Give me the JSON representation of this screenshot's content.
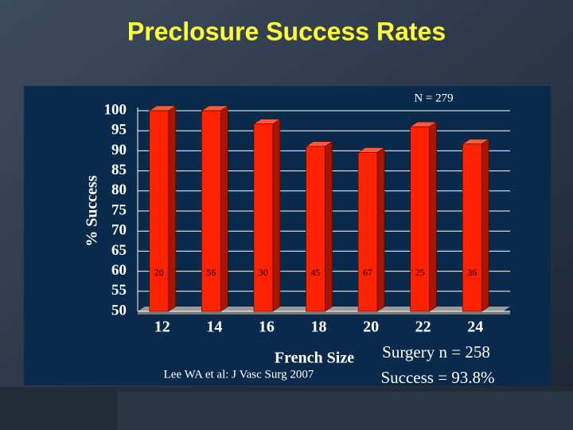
{
  "chart_data": {
    "type": "bar",
    "title": "Preclosure Success Rates",
    "subtitle": "N = 279",
    "x_label": "French Size",
    "y_label": "% Success",
    "categories": [
      "12",
      "14",
      "16",
      "18",
      "20",
      "22",
      "24"
    ],
    "values": [
      100,
      100,
      96.7,
      91.1,
      89.6,
      96,
      91.7
    ],
    "bar_labels": [
      20,
      56,
      30,
      45,
      67,
      25,
      36
    ],
    "color": "#ff2200",
    "ylim": [
      50,
      100
    ],
    "yticks": [
      50,
      55,
      60,
      65,
      70,
      75,
      80,
      85,
      90,
      95,
      100
    ],
    "grid": true,
    "annotations": [
      "Lee WA et al: J Vasc Surg 2007",
      "Surgery n = 258",
      "Success = 93.8%"
    ]
  }
}
